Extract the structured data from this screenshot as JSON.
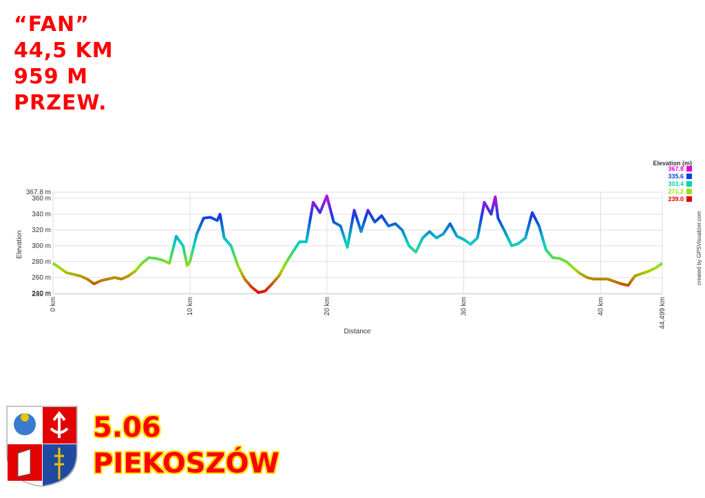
{
  "poster": {
    "lines": [
      "“FAN”",
      "44,5 KM",
      "959 M",
      "PRZEW."
    ],
    "date": "5.06",
    "place": "PIEKOSZÓW"
  },
  "chart_data": {
    "type": "line",
    "xlabel": "Distance",
    "ylabel": "Elevation",
    "credit": "created by GPSVisualizer.com",
    "x": [
      0,
      0.5,
      1,
      1.5,
      2,
      2.5,
      3,
      3.5,
      4,
      4.5,
      5,
      5.5,
      6,
      6.5,
      7,
      7.5,
      8,
      8.5,
      9,
      9.5,
      9.8,
      10,
      10.5,
      11,
      11.5,
      12,
      12.2,
      12.5,
      13,
      13.5,
      14,
      14.5,
      15,
      15.5,
      16,
      16.5,
      17,
      17.5,
      18,
      18.5,
      19,
      19.5,
      20,
      20.5,
      21,
      21.5,
      22,
      22.5,
      23,
      23.5,
      24,
      24.5,
      25,
      25.5,
      26,
      26.5,
      27,
      27.5,
      28,
      28.5,
      29,
      29.5,
      30,
      30.5,
      31,
      31.5,
      32,
      32.3,
      32.5,
      33,
      33.5,
      34,
      34.5,
      35,
      35.5,
      36,
      36.5,
      37,
      37.5,
      38,
      38.5,
      39,
      39.5,
      40,
      40.5,
      41,
      41.5,
      42,
      42.5,
      43,
      43.5,
      44,
      44.499
    ],
    "values": [
      278,
      272,
      266,
      264,
      262,
      258,
      252,
      256,
      258,
      260,
      258,
      262,
      268,
      278,
      285,
      284,
      282,
      278,
      312,
      300,
      275,
      280,
      315,
      335,
      336,
      332,
      340,
      310,
      300,
      275,
      258,
      248,
      241,
      243,
      252,
      262,
      278,
      292,
      305,
      305,
      355,
      342,
      363,
      330,
      325,
      298,
      345,
      318,
      345,
      330,
      338,
      325,
      328,
      320,
      300,
      292,
      310,
      318,
      310,
      315,
      328,
      312,
      308,
      302,
      310,
      355,
      340,
      362,
      335,
      318,
      300,
      303,
      310,
      342,
      325,
      295,
      285,
      284,
      280,
      272,
      265,
      260,
      258,
      258,
      258,
      255,
      252,
      250,
      262,
      265,
      268,
      272,
      278
    ],
    "xlim": [
      0,
      44.499
    ],
    "ylim": [
      239,
      367.8
    ],
    "xticks": [
      {
        "value": 0,
        "label": "0 km"
      },
      {
        "value": 10,
        "label": "10 km"
      },
      {
        "value": 20,
        "label": "20 km"
      },
      {
        "value": 30,
        "label": "30 km"
      },
      {
        "value": 40,
        "label": "40 km"
      },
      {
        "value": 44.499,
        "label": "44.499 km"
      }
    ],
    "yticks": [
      {
        "value": 239,
        "label": "239 m"
      },
      {
        "value": 240,
        "label": "240 m"
      },
      {
        "value": 260,
        "label": "260 m"
      },
      {
        "value": 280,
        "label": "280 m"
      },
      {
        "value": 300,
        "label": "300 m"
      },
      {
        "value": 320,
        "label": "320 m"
      },
      {
        "value": 340,
        "label": "340 m"
      },
      {
        "value": 360,
        "label": "360 m"
      },
      {
        "value": 367.8,
        "label": "367.8 m"
      }
    ],
    "grid": true,
    "color_scale": {
      "title": "Elevation (m)",
      "stops": [
        {
          "value": 367.8,
          "label": "367.8",
          "color": "#e000e0"
        },
        {
          "value": 335.6,
          "label": "335.6",
          "color": "#1040e0"
        },
        {
          "value": 303.4,
          "label": "303.4",
          "color": "#00d0c0"
        },
        {
          "value": 271.2,
          "label": "271.2",
          "color": "#a0e000"
        },
        {
          "value": 239.0,
          "label": "239.0",
          "color": "#e00000"
        }
      ]
    }
  }
}
